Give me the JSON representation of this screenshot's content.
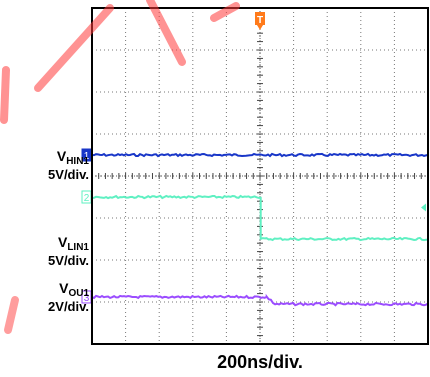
{
  "chart_data": {
    "type": "line",
    "x_division_label": "200ns/div.",
    "trigger_marker": "T",
    "x_range_divisions": [
      0,
      10
    ],
    "y_range_divisions": [
      0,
      8
    ],
    "grid": true,
    "series": [
      {
        "channel_marker": "1",
        "label_main": "V",
        "label_sub": "HIN1",
        "scale": "5V/div.",
        "color": "#1836c8",
        "points": [
          [
            0,
            4.5
          ],
          [
            10,
            4.5
          ]
        ]
      },
      {
        "channel_marker": "2",
        "label_main": "V",
        "label_sub": "LIN1",
        "scale": "5V/div.",
        "color": "#5ff0c2",
        "points": [
          [
            0,
            3.5
          ],
          [
            5.02,
            3.5
          ],
          [
            5.02,
            2.5
          ],
          [
            10,
            2.5
          ]
        ]
      },
      {
        "channel_marker": "3",
        "label_main": "V",
        "label_sub": "OU1",
        "scale": "2V/div.",
        "color": "#9b4dff",
        "points": [
          [
            0,
            1.12
          ],
          [
            5.2,
            1.12
          ],
          [
            5.45,
            0.95
          ],
          [
            10,
            0.95
          ]
        ]
      }
    ]
  }
}
